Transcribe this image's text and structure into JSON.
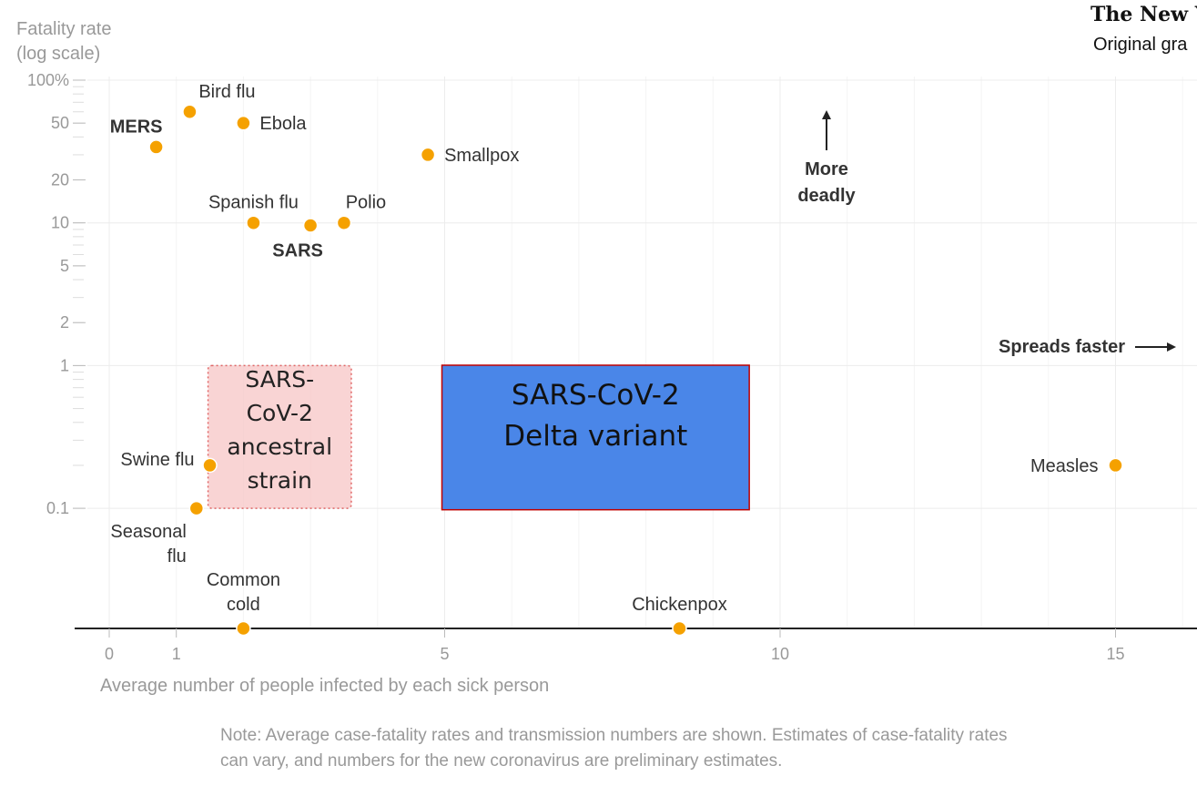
{
  "header": {
    "publisher": "The New Yo",
    "credit": "Original gra"
  },
  "chart_data": {
    "type": "scatter",
    "title": "",
    "ylabel": [
      "Fatality rate",
      "(log scale)"
    ],
    "xlabel": "Average number of people infected by each sick person",
    "x_scale": "linear",
    "y_scale": "log",
    "xlim": [
      -0.5,
      16.2
    ],
    "ylim": [
      0.01,
      100
    ],
    "x_ticks": [
      {
        "value": 0,
        "label": "0"
      },
      {
        "value": 1,
        "label": "1"
      },
      {
        "value": 5,
        "label": "5"
      },
      {
        "value": 10,
        "label": "10"
      },
      {
        "value": 15,
        "label": "15"
      }
    ],
    "y_ticks": [
      {
        "value": 100,
        "label": "100%"
      },
      {
        "value": 50,
        "label": "50"
      },
      {
        "value": 20,
        "label": "20"
      },
      {
        "value": 10,
        "label": "10"
      },
      {
        "value": 5,
        "label": "5"
      },
      {
        "value": 2,
        "label": "2"
      },
      {
        "value": 1,
        "label": "1"
      },
      {
        "value": 0.1,
        "label": "0.1"
      }
    ],
    "points": [
      {
        "name": "MERS",
        "x": 0.7,
        "y": 34,
        "bold": true
      },
      {
        "name": "Bird flu",
        "x": 1.2,
        "y": 60,
        "bold": false
      },
      {
        "name": "Ebola",
        "x": 2.0,
        "y": 50,
        "bold": false
      },
      {
        "name": "Smallpox",
        "x": 4.75,
        "y": 30,
        "bold": false
      },
      {
        "name": "Spanish flu",
        "x": 2.15,
        "y": 10,
        "bold": false
      },
      {
        "name": "SARS",
        "x": 3.0,
        "y": 9.6,
        "bold": true
      },
      {
        "name": "Polio",
        "x": 3.5,
        "y": 10,
        "bold": false
      },
      {
        "name": "Swine flu",
        "x": 1.5,
        "y": 0.2,
        "bold": false
      },
      {
        "name": "Seasonal flu",
        "x": 1.3,
        "y": 0.1,
        "bold": false
      },
      {
        "name": "Common cold",
        "x": 2.0,
        "y": 0.013,
        "bold": false
      },
      {
        "name": "Chickenpox",
        "x": 8.5,
        "y": 0.013,
        "bold": false
      },
      {
        "name": "Measles",
        "x": 15.0,
        "y": 0.2,
        "bold": false
      }
    ],
    "regions": [
      {
        "label": [
          "SARS-",
          "CoV-2",
          "ancestral",
          "strain"
        ],
        "x": [
          1.5,
          3.5
        ],
        "y": [
          0.1,
          1
        ]
      },
      {
        "label": [
          "SARS-CoV-2",
          "Delta variant"
        ],
        "x": [
          5.0,
          9.5
        ],
        "y": [
          0.12,
          1.2
        ]
      }
    ],
    "annotations": {
      "more_deadly": [
        "More",
        "deadly"
      ],
      "spreads_faster": "Spreads faster"
    },
    "note": [
      "Note: Average case-fatality rates and transmission numbers are shown. Estimates of case-fatality rates",
      "can vary, and numbers for the new coronavirus are preliminary estimates."
    ],
    "grid": true,
    "colors": {
      "point": "#f5a100",
      "delta_box": "#4a86e8",
      "delta_border": "#c00000",
      "ancestral_box": "#f7c6c6",
      "ancestral_border": "#e06666"
    }
  }
}
